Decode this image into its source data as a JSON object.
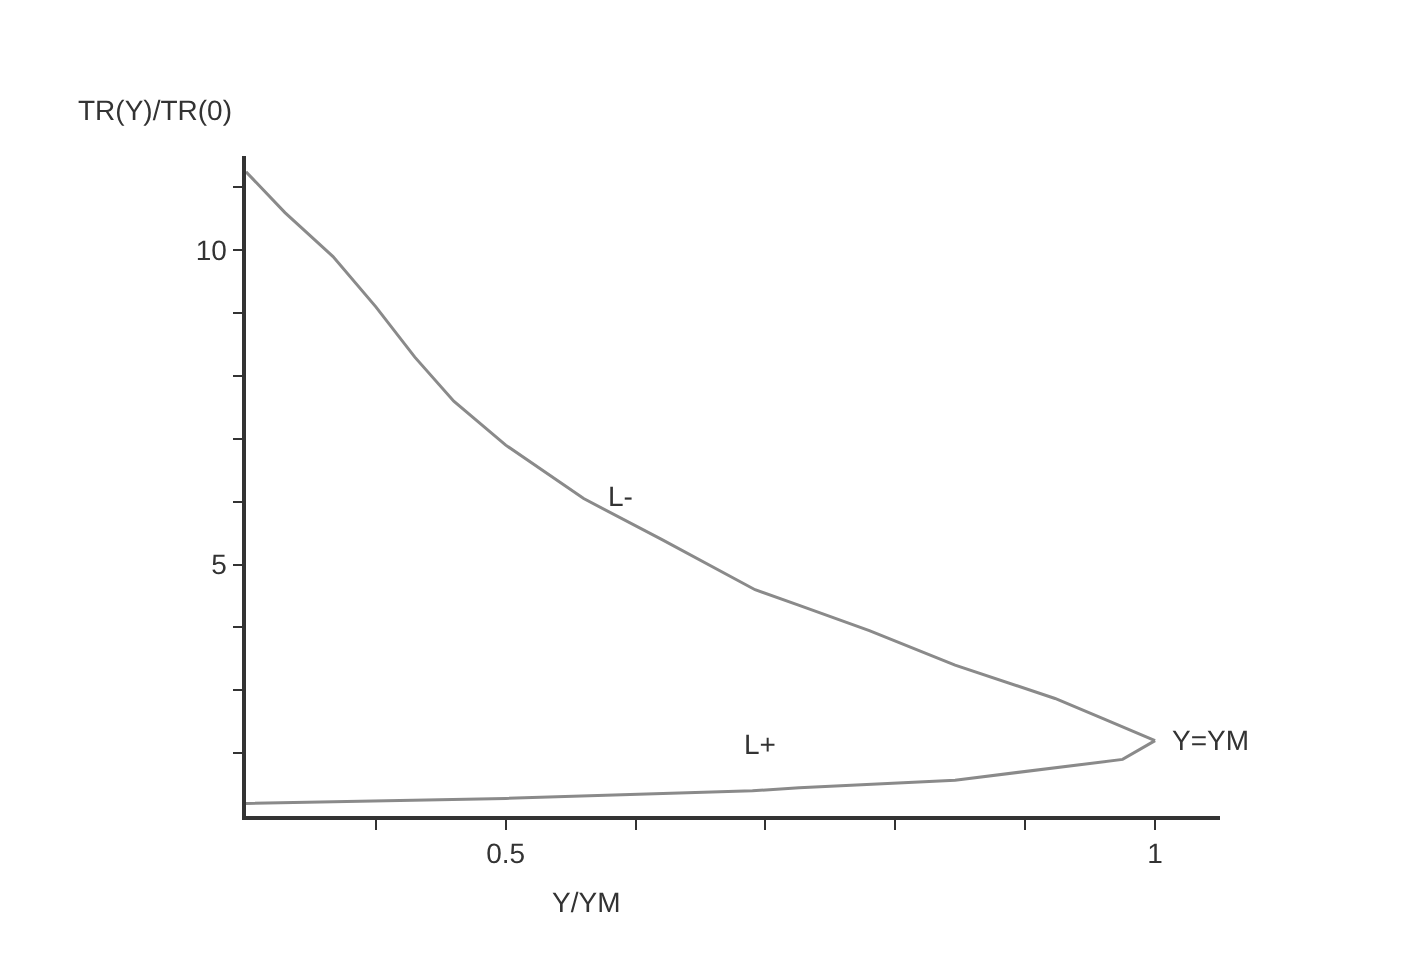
{
  "chart_data": {
    "type": "line",
    "xlabel": "Y/YM",
    "ylabel": "TR(Y)/TR(0)",
    "xlim": [
      0.3,
      1.05
    ],
    "ylim": [
      1,
      11.5
    ],
    "xticks": [
      {
        "value": 0.4,
        "label": null
      },
      0.5,
      {
        "value": 0.6,
        "label": null
      },
      {
        "value": 0.7,
        "label": null
      },
      {
        "value": 0.8,
        "label": null
      },
      {
        "value": 0.9,
        "label": null
      },
      1
    ],
    "yticks": [
      {
        "value": 2,
        "label": null
      },
      {
        "value": 3,
        "label": null
      },
      {
        "value": 4,
        "label": null
      },
      5,
      {
        "value": 6,
        "label": null
      },
      {
        "value": 7,
        "label": null
      },
      {
        "value": 8,
        "label": null
      },
      {
        "value": 9,
        "label": null
      },
      10,
      {
        "value": 11,
        "label": null
      }
    ],
    "marker": "none",
    "line_style": "solid",
    "series": [
      {
        "name": "L-",
        "color": "#8a8a8a",
        "x": [
          0.3,
          0.33,
          0.367,
          0.4,
          0.43,
          0.46,
          0.5,
          0.56,
          0.62,
          0.692,
          0.726,
          0.78,
          0.846,
          0.923,
          0.96,
          1.0
        ],
        "values": [
          11.25,
          10.6,
          9.9,
          9.1,
          8.3,
          7.6,
          6.9,
          6.05,
          5.4,
          4.6,
          4.35,
          3.95,
          3.4,
          2.87,
          2.55,
          2.2
        ]
      },
      {
        "name": "L+",
        "color": "#8a8a8a",
        "x": [
          0.3,
          0.5,
          0.69,
          0.726,
          0.846,
          0.975,
          1.0
        ],
        "values": [
          1.2,
          1.28,
          1.4,
          1.45,
          1.57,
          1.9,
          2.2
        ]
      }
    ],
    "annotations": [
      "Y=YM"
    ]
  }
}
